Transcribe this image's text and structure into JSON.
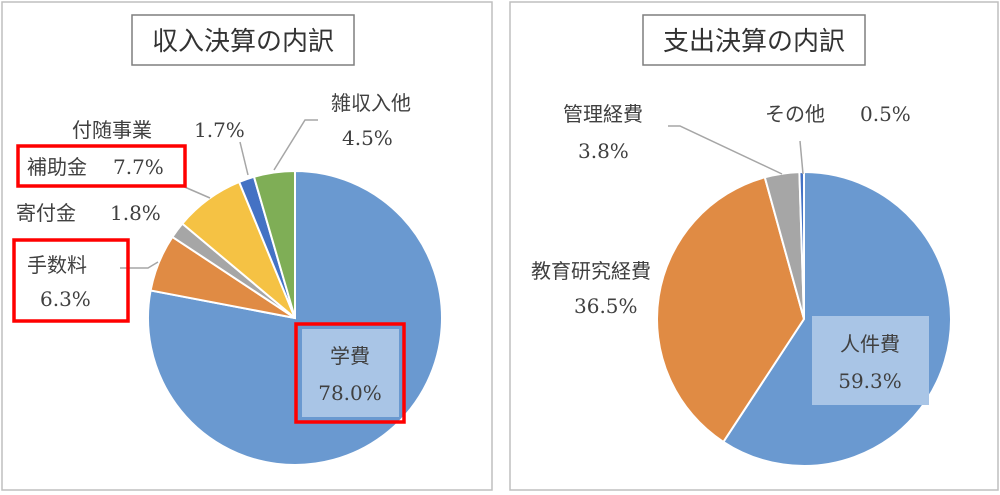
{
  "chart_data": [
    {
      "type": "pie",
      "title": "収入決算の内訳",
      "slices": [
        {
          "name": "学費",
          "value": 78.0,
          "label": "78.0%",
          "color": "#6a99d0"
        },
        {
          "name": "手数料",
          "value": 6.3,
          "label": "6.3%",
          "color": "#e08b44"
        },
        {
          "name": "寄付金",
          "value": 1.8,
          "label": "1.8%",
          "color": "#a6a6a6"
        },
        {
          "name": "補助金",
          "value": 7.7,
          "label": "7.7%",
          "color": "#f5c244"
        },
        {
          "name": "付随事業",
          "value": 1.7,
          "label": "1.7%",
          "color": "#4472c4"
        },
        {
          "name": "雑収入他",
          "value": 4.5,
          "label": "4.5%",
          "color": "#7fae56"
        }
      ],
      "highlighted": [
        "学費",
        "手数料",
        "補助金"
      ],
      "highlight_color": "#ff0000"
    },
    {
      "type": "pie",
      "title": "支出決算の内訳",
      "slices": [
        {
          "name": "人件費",
          "value": 59.3,
          "label": "59.3%",
          "color": "#6a99d0"
        },
        {
          "name": "教育研究経費",
          "value": 36.5,
          "label": "36.5%",
          "color": "#e08b44"
        },
        {
          "name": "管理経費",
          "value": 3.8,
          "label": "3.8%",
          "color": "#a6a6a6"
        },
        {
          "name": "その他",
          "value": 0.5,
          "label": "0.5%",
          "color": "#4472c4"
        }
      ]
    }
  ]
}
